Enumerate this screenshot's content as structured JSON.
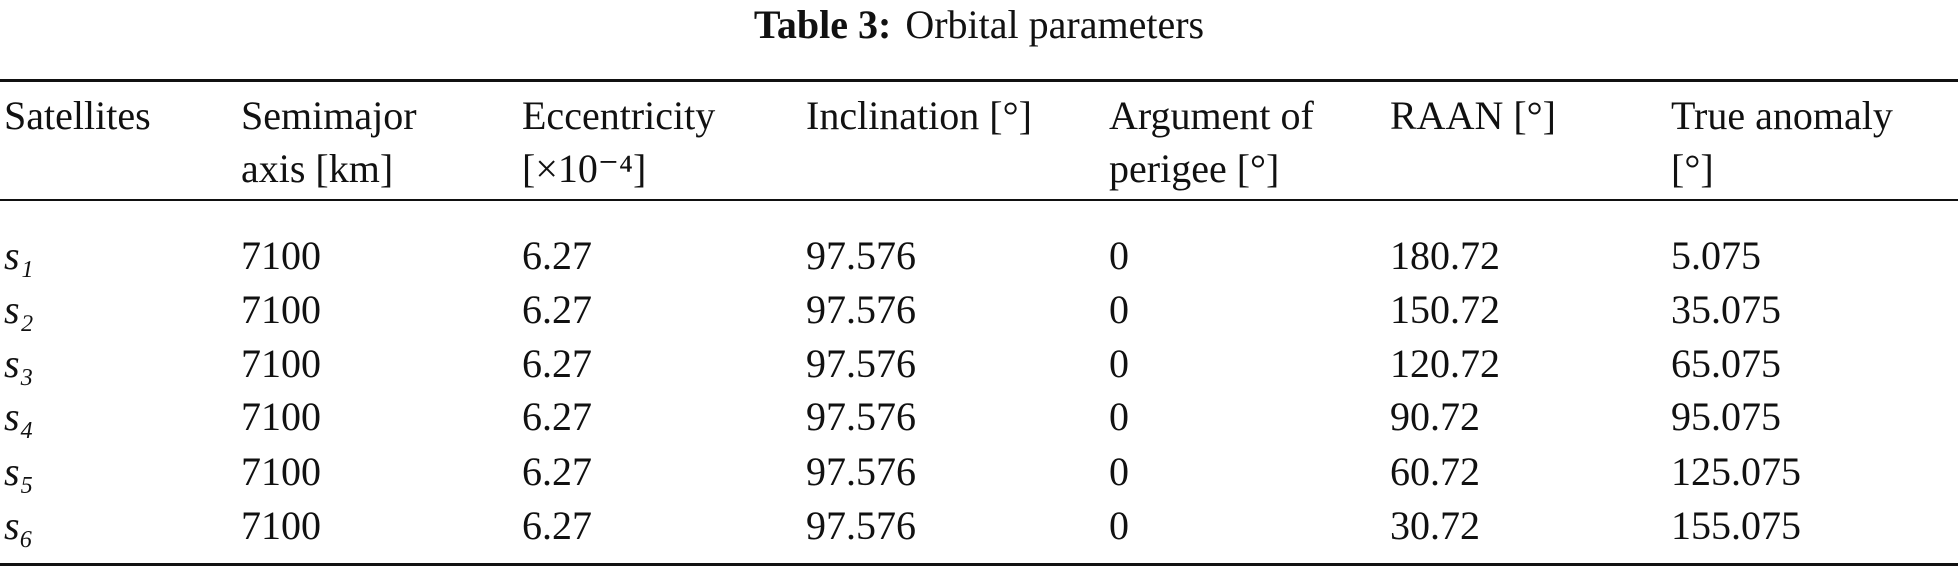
{
  "title": {
    "label": "Table 3:",
    "text": "Orbital parameters"
  },
  "table": {
    "header": [
      [
        "Satellites"
      ],
      [
        "Semimajor",
        "axis [km]"
      ],
      [
        "Eccentricity",
        "[×10⁻⁴]"
      ],
      [
        "Inclination [°]"
      ],
      [
        "Argument of",
        "perigee [°]"
      ],
      [
        "RAAN [°]"
      ],
      [
        "True anomaly",
        "[°]"
      ]
    ],
    "rows": [
      [
        "s₁",
        "7100",
        "6.27",
        "97.576",
        "0",
        "180.72",
        "5.075"
      ],
      [
        "s₂",
        "7100",
        "6.27",
        "97.576",
        "0",
        "150.72",
        "35.075"
      ],
      [
        "s₃",
        "7100",
        "6.27",
        "97.576",
        "0",
        "120.72",
        "65.075"
      ],
      [
        "s₄",
        "7100",
        "6.27",
        "97.576",
        "0",
        "90.72",
        "95.075"
      ],
      [
        "s₅",
        "7100",
        "6.27",
        "97.576",
        "0",
        "60.72",
        "125.075"
      ],
      [
        "s₆",
        "7100",
        "6.27",
        "97.576",
        "0",
        "30.72",
        "155.075"
      ]
    ]
  }
}
